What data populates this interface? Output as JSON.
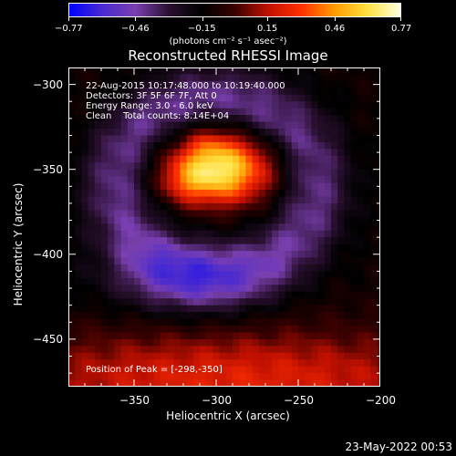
{
  "colorbar": {
    "ticks": [
      "-0.77",
      "-0.46",
      "-0.15",
      "0.15",
      "0.46",
      "0.77"
    ],
    "tick_values": [
      -0.77,
      -0.46,
      -0.15,
      0.15,
      0.46,
      0.77
    ],
    "range": [
      -0.77,
      0.77
    ],
    "unit_label": "(photons cm⁻² s⁻¹ asec⁻²)",
    "colors": [
      "#0000ff",
      "#4a2bd0",
      "#7a3fb0",
      "#2a1030",
      "#000000",
      "#3a0000",
      "#c01000",
      "#ff3000",
      "#ff9a00",
      "#ffe040",
      "#ffffe0"
    ]
  },
  "info": {
    "line1": "22-Aug-2015 10:17:48.000 to 10:19:40.000",
    "line2": "Detectors: 3F 5F 6F 7F, Att 0",
    "line3": "Energy Range: 3.0 - 6.0 keV",
    "line4": "Clean    Total counts: 8.14E+04",
    "peak": "Position of Peak = [-298,-350]"
  },
  "timestamp": "23-May-2022 00:53",
  "chart_data": {
    "type": "heatmap",
    "title": "Reconstructed RHESSI Image",
    "xlabel": "Heliocentric X (arcsec)",
    "ylabel": "Heliocentric Y (arcsec)",
    "xlim": [
      -390,
      -200
    ],
    "ylim": [
      -478,
      -290
    ],
    "x_ticks": [
      -350,
      -300,
      -250,
      -200
    ],
    "x_tick_labels": [
      "−350",
      "−300",
      "−250",
      "−200"
    ],
    "y_ticks": [
      -300,
      -350,
      -400,
      -450
    ],
    "y_tick_labels": [
      "−300",
      "−350",
      "−400",
      "−450"
    ],
    "pixel_size_arcsec": 4,
    "peak": {
      "x": -298,
      "y": -350,
      "value": 0.77
    },
    "min_value": -0.77,
    "components": [
      {
        "name": "central source",
        "x": -298,
        "y": -350,
        "sx": 22,
        "sy": 14,
        "amp": 0.77
      },
      {
        "name": "bright lobe south-west",
        "x": -318,
        "y": -358,
        "sx": 12,
        "sy": 8,
        "amp": 0.15
      },
      {
        "name": "bright lobe north",
        "x": -305,
        "y": -335,
        "sx": 10,
        "sy": 8,
        "amp": 0.1
      },
      {
        "name": "positive band south",
        "x": -290,
        "y": -475,
        "sx": 110,
        "sy": 22,
        "amp": 0.35
      },
      {
        "name": "negative ring",
        "ring_center": [
          -300,
          -360
        ],
        "ring_radius": 60,
        "ring_width": 22,
        "amp": -0.3
      },
      {
        "name": "negative trough south-west",
        "x": -320,
        "y": -415,
        "sx": 35,
        "sy": 15,
        "amp": -0.25
      }
    ]
  }
}
